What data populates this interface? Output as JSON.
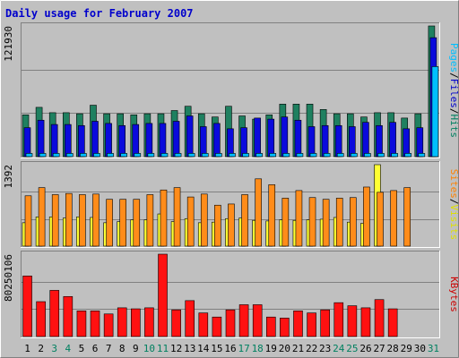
{
  "chart_data": {
    "type": "bar",
    "title": "Daily usage for February 2007",
    "categories": [
      "1",
      "2",
      "3",
      "4",
      "5",
      "6",
      "7",
      "8",
      "9",
      "10",
      "11",
      "12",
      "13",
      "14",
      "15",
      "16",
      "17",
      "18",
      "19",
      "20",
      "21",
      "22",
      "23",
      "24",
      "25",
      "26",
      "27",
      "28",
      "29",
      "30",
      "31"
    ],
    "weekend_days": [
      3,
      4,
      10,
      11,
      17,
      18,
      24,
      25,
      31
    ],
    "panels": [
      {
        "id": "hits",
        "ymax_label": "121930",
        "ylim": [
          0,
          121930
        ],
        "legend": [
          {
            "text": "Pages",
            "color": "#00bfff"
          },
          {
            "text": "/",
            "color": "#000000"
          },
          {
            "text": "Files",
            "color": "#0000cc"
          },
          {
            "text": "/",
            "color": "#000000"
          },
          {
            "text": "Hits",
            "color": "#008060"
          }
        ],
        "series": [
          {
            "name": "Hits",
            "color": "#1f8060",
            "values": [
              39000,
              46000,
              41000,
              41000,
              40000,
              48000,
              40000,
              40000,
              39000,
              40000,
              40000,
              43000,
              47000,
              40000,
              37000,
              47000,
              38000,
              35000,
              39000,
              49000,
              49000,
              49000,
              44000,
              40000,
              40000,
              37000,
              41000,
              41000,
              36000,
              40000,
              121930
            ]
          },
          {
            "name": "Files",
            "color": "#0a0adc",
            "values": [
              27000,
              34000,
              30000,
              30000,
              29000,
              33000,
              31000,
              29000,
              30000,
              31000,
              31000,
              33000,
              38000,
              28000,
              31000,
              26000,
              27000,
              36000,
              35000,
              37000,
              34000,
              28000,
              29000,
              29000,
              28000,
              32000,
              29000,
              32000,
              26000,
              27000,
              111000
            ]
          },
          {
            "name": "Pages",
            "color": "#00bfff",
            "values": [
              3000,
              3000,
              3000,
              3000,
              3000,
              3000,
              3000,
              3000,
              3000,
              3000,
              3000,
              3000,
              3000,
              3000,
              3000,
              3000,
              3000,
              3000,
              3000,
              3000,
              3000,
              3000,
              3000,
              3000,
              3000,
              3000,
              3000,
              3000,
              3000,
              3000,
              84000
            ]
          }
        ]
      },
      {
        "id": "visits",
        "ymax_label": "1392",
        "ylim": [
          0,
          1392
        ],
        "legend": [
          {
            "text": "Sites",
            "color": "#ff8000"
          },
          {
            "text": "/",
            "color": "#000000"
          },
          {
            "text": "Visits",
            "color": "#e0e000"
          }
        ],
        "series": [
          {
            "name": "Visits",
            "color": "#ffff33",
            "values": [
              400,
              500,
              500,
              480,
              500,
              490,
              400,
              420,
              450,
              450,
              550,
              420,
              470,
              400,
              410,
              470,
              480,
              440,
              430,
              450,
              440,
              450,
              460,
              490,
              410,
              390,
              1392,
              0,
              0,
              0,
              0
            ]
          },
          {
            "name": "Sites",
            "color": "#ff8c1a",
            "values": [
              860,
              1000,
              880,
              900,
              880,
              890,
              800,
              800,
              800,
              880,
              960,
              1000,
              840,
              890,
              700,
              720,
              880,
              1150,
              1050,
              820,
              950,
              830,
              800,
              820,
              830,
              1010,
              920,
              950,
              1000,
              0,
              0
            ]
          }
        ]
      },
      {
        "id": "kbytes",
        "ymax_label": "80250106",
        "ylim": [
          0,
          80250106
        ],
        "legend": [
          {
            "text": "KBytes",
            "color": "#cc0000"
          }
        ],
        "series": [
          {
            "name": "KBytes",
            "color": "#ff1111",
            "values": [
              59000000,
              34000000,
              45000000,
              39000000,
              25000000,
              25000000,
              22000000,
              28000000,
              27000000,
              28000000,
              80250106,
              26000000,
              35000000,
              23000000,
              19000000,
              26000000,
              31000000,
              31000000,
              19000000,
              18000000,
              25000000,
              23000000,
              26000000,
              33000000,
              30000000,
              28000000,
              36000000,
              27000000,
              0,
              0,
              0
            ]
          }
        ]
      }
    ]
  }
}
